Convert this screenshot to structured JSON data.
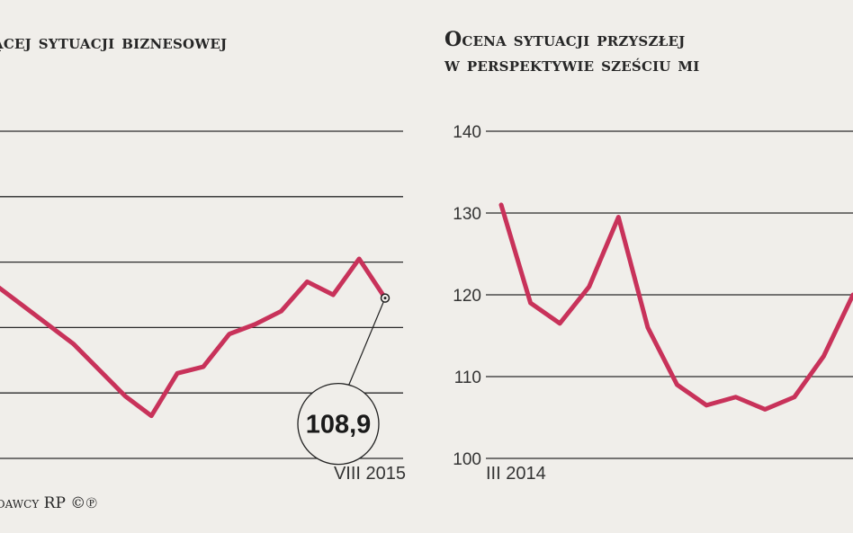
{
  "chart_data": [
    {
      "type": "line",
      "title": "ącej sytuacji biznesowej",
      "x_start_label": "",
      "x_end_label": "VIII 2015",
      "yticks": [],
      "ylim": [
        90,
        140
      ],
      "grid": true,
      "y": [
        116.5,
        113.5,
        110.5,
        107.5,
        103.5,
        99.5,
        96.5,
        103,
        104,
        109,
        110.5,
        112.5,
        117,
        115,
        120.5,
        114.5
      ],
      "highlight": {
        "label": "108,9",
        "value": 108.9
      }
    },
    {
      "type": "line",
      "title": "Ocena sytuacji przyszłej",
      "title_line2": "w perspektywie sześciu mi",
      "x_start_label": "III 2014",
      "x_end_label": "",
      "yticks": [
        "140",
        "130",
        "120",
        "110",
        "100"
      ],
      "ylim": [
        100,
        140
      ],
      "grid": true,
      "y": [
        131,
        119,
        116.5,
        121,
        129.5,
        116,
        109,
        106.5,
        107.5,
        106,
        107.5,
        112.5,
        120
      ]
    }
  ],
  "source": "dawcy RP ©℗"
}
